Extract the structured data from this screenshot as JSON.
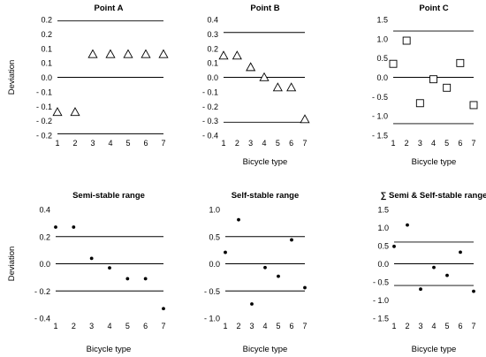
{
  "chart_data": [
    {
      "type": "scatter",
      "title": "Point A",
      "xlabel": "",
      "ylabel": "Deviation",
      "marker": "triangle",
      "xlim": [
        1,
        7
      ],
      "xticks": [
        1,
        2,
        3,
        4,
        5,
        6,
        7
      ],
      "ylim": [
        -0.2,
        0.2
      ],
      "yticks": [
        -0.2,
        -0.15,
        -0.1,
        -0.05,
        0.0,
        0.05,
        0.1,
        0.15,
        0.2
      ],
      "ytick_labels": [
        "- 0.2",
        "- 0.2",
        "- 0.1",
        "- 0.1",
        "0.0",
        "0.1",
        "0.1",
        "0.2",
        "0.2"
      ],
      "reference_lines": [
        0.195,
        0.0,
        -0.195
      ],
      "x": [
        1,
        2,
        3,
        4,
        5,
        6,
        7
      ],
      "y": [
        -0.12,
        -0.12,
        0.08,
        0.08,
        0.08,
        0.08,
        0.08
      ]
    },
    {
      "type": "scatter",
      "title": "Point B",
      "xlabel": "Bicycle type",
      "ylabel": "",
      "marker": "triangle",
      "xlim": [
        1,
        7
      ],
      "xticks": [
        1,
        2,
        3,
        4,
        5,
        6,
        7
      ],
      "ylim": [
        -0.4,
        0.4
      ],
      "yticks": [
        -0.4,
        -0.3,
        -0.2,
        -0.1,
        0.0,
        0.1,
        0.2,
        0.3,
        0.4
      ],
      "ytick_labels": [
        "- 0.4",
        "- 0.3",
        "- 0.2",
        "- 0.1",
        "0.0",
        "0.1",
        "0.2",
        "0.3",
        "0.4"
      ],
      "reference_lines": [
        0.31,
        0.0,
        -0.31
      ],
      "x": [
        1,
        2,
        3,
        4,
        5,
        6,
        7
      ],
      "y": [
        0.15,
        0.15,
        0.07,
        0.0,
        -0.07,
        -0.07,
        -0.29
      ]
    },
    {
      "type": "scatter",
      "title": "Point C",
      "xlabel": "Bicycle type",
      "ylabel": "",
      "marker": "square",
      "xlim": [
        1,
        7
      ],
      "xticks": [
        1,
        2,
        3,
        4,
        5,
        6,
        7
      ],
      "ylim": [
        -1.5,
        1.5
      ],
      "yticks": [
        -1.5,
        -1.0,
        -0.5,
        0.0,
        0.5,
        1.0,
        1.5
      ],
      "ytick_labels": [
        "- 1.5",
        "- 1.0",
        "- 0.5",
        "0.0",
        "0.5",
        "1.0",
        "1.5"
      ],
      "reference_lines": [
        1.2,
        0.0,
        -1.2
      ],
      "x": [
        1,
        2,
        3,
        4,
        5,
        6,
        7
      ],
      "y": [
        0.35,
        0.95,
        -0.67,
        -0.05,
        -0.27,
        0.37,
        -0.72
      ]
    },
    {
      "type": "scatter",
      "title": "Semi-stable range",
      "xlabel": "Bicycle type",
      "ylabel": "Deviation",
      "marker": "dot",
      "xlim": [
        1,
        7
      ],
      "xticks": [
        1,
        2,
        3,
        4,
        5,
        6,
        7
      ],
      "ylim": [
        -0.4,
        0.4
      ],
      "yticks": [
        -0.4,
        -0.2,
        0.0,
        0.2,
        0.4
      ],
      "ytick_labels": [
        "- 0.4",
        "- 0.2",
        "0.0",
        "0.2",
        "0.4"
      ],
      "reference_lines": [
        0.2,
        0.0,
        -0.2
      ],
      "x": [
        1,
        2,
        3,
        4,
        5,
        6,
        7
      ],
      "y": [
        0.27,
        0.27,
        0.04,
        -0.03,
        -0.11,
        -0.11,
        -0.33
      ]
    },
    {
      "type": "scatter",
      "title": "Self-stable range",
      "xlabel": "Bicycle type",
      "ylabel": "",
      "marker": "dot",
      "xlim": [
        1,
        7
      ],
      "xticks": [
        1,
        2,
        3,
        4,
        5,
        6,
        7
      ],
      "ylim": [
        -1.0,
        1.0
      ],
      "yticks": [
        -1.0,
        -0.5,
        0.0,
        0.5,
        1.0
      ],
      "ytick_labels": [
        "- 1.0",
        "- 0.5",
        "0.0",
        "0.5",
        "1.0"
      ],
      "reference_lines": [
        0.5,
        0.0,
        -0.5
      ],
      "x": [
        1,
        2,
        3,
        4,
        5,
        6,
        7
      ],
      "y": [
        0.21,
        0.81,
        -0.74,
        -0.07,
        -0.23,
        0.44,
        -0.44
      ]
    },
    {
      "type": "scatter",
      "title": "∑ Semi & Self-stable range",
      "xlabel": "Bicycle type",
      "ylabel": "",
      "marker": "dot",
      "xlim": [
        1,
        7
      ],
      "xticks": [
        1,
        2,
        3,
        4,
        5,
        6,
        7
      ],
      "ylim": [
        -1.5,
        1.5
      ],
      "yticks": [
        -1.5,
        -1.0,
        -0.5,
        0.0,
        0.5,
        1.0,
        1.5
      ],
      "ytick_labels": [
        "- 1.5",
        "- 1.0",
        "- 0.5",
        "0.0",
        "0.5",
        "1.0",
        "1.5"
      ],
      "reference_lines": [
        0.6,
        0.0,
        -0.6
      ],
      "x": [
        1,
        2,
        3,
        4,
        5,
        6,
        7
      ],
      "y": [
        0.48,
        1.07,
        -0.7,
        -0.1,
        -0.32,
        0.32,
        -0.76
      ]
    }
  ]
}
